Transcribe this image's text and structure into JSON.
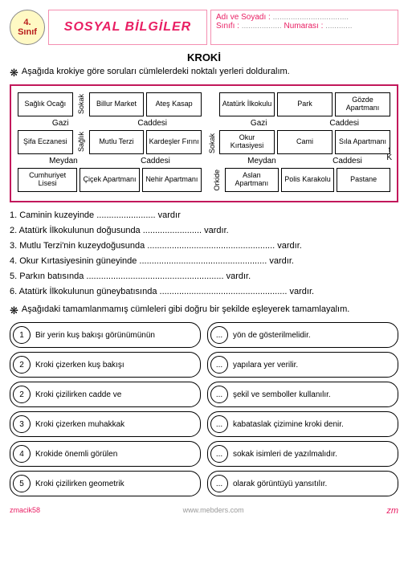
{
  "badge": {
    "grade": "4.",
    "line2": "Sınıf"
  },
  "subject": "SOSYAL BİLGİLER",
  "info": {
    "name_label": "Adı ve Soyadı :",
    "class_label": "Sınıfı :",
    "number_label": "Numarası :",
    "dots_long": "..................................",
    "dots_med": "..................",
    "dots_short": "............"
  },
  "title": "KROKİ",
  "instr1": "Aşağıda krokiye göre soruları cümlelerdeki noktalı yerleri dolduralım.",
  "instr2": "Aşağıdaki tamamlanmamış cümleleri gibi doğru bir şekilde eşleyerek tamamlayalım.",
  "map": {
    "left": {
      "r1": [
        "Sağlık Ocağı",
        "Billur Market",
        "Ateş Kasap"
      ],
      "street1": [
        "Gazi",
        "Caddesi"
      ],
      "r2": [
        "Şifa Eczanesi",
        "Mutlu Terzi",
        "Kardeşler Fırını"
      ],
      "street2": [
        "Meydan",
        "Caddesi"
      ],
      "r3": [
        "Cumhuriyet Lisesi",
        "Çiçek Apartmanı",
        "Nehir Apartmanı"
      ],
      "v1": "Sokak",
      "v2": "Sağlık"
    },
    "right": {
      "r1": [
        "Atatürk İlkokulu",
        "Park",
        "Gözde Apartmanı"
      ],
      "street1": [
        "Gazi",
        "Caddesi"
      ],
      "r2": [
        "Okur Kırtasiyesi",
        "Cami",
        "Sıla Apartmanı"
      ],
      "street2": [
        "Meydan",
        "Caddesi"
      ],
      "r3": [
        "Aslan Apartmanı",
        "Polis Karakolu",
        "Pastane"
      ],
      "v1": "Sokak",
      "v2": "Orkide",
      "compass": "K"
    }
  },
  "questions": [
    "1. Caminin kuzeyinde ........................ vardır",
    "2. Atatürk İlkokulunun doğusunda ........................ vardır.",
    "3. Mutlu Terzi'nin kuzeydoğusunda .................................................... vardır.",
    "4. Okur Kırtasiyesinin güneyinde .................................................... vardır.",
    "5. Parkın batısında ........................................................ vardır.",
    "6. Atatürk İlkokulunun güneybatısında .................................................... vardır."
  ],
  "match": {
    "left": [
      {
        "n": "1",
        "t": "Bir yerin kuş bakışı görünümünün"
      },
      {
        "n": "2",
        "t": "Kroki çizerken kuş bakışı"
      },
      {
        "n": "2",
        "t": "Kroki çizilirken cadde ve"
      },
      {
        "n": "3",
        "t": "Kroki çizerken muhakkak"
      },
      {
        "n": "4",
        "t": "Krokide önemli görülen"
      },
      {
        "n": "5",
        "t": "Kroki çizilirken geometrik"
      }
    ],
    "right": [
      {
        "n": "...",
        "t": "yön de gösterilmelidir."
      },
      {
        "n": "...",
        "t": "yapılara yer verilir."
      },
      {
        "n": "...",
        "t": "şekil ve semboller kullanılır."
      },
      {
        "n": "...",
        "t": "kabataslak çizimine kroki denir."
      },
      {
        "n": "...",
        "t": "sokak isimleri de yazılmalıdır."
      },
      {
        "n": "...",
        "t": "olarak görüntüyü yansıtılır."
      }
    ]
  },
  "footer": {
    "left": "zmacik58",
    "center": "www.mebders.com",
    "right": "zm"
  }
}
